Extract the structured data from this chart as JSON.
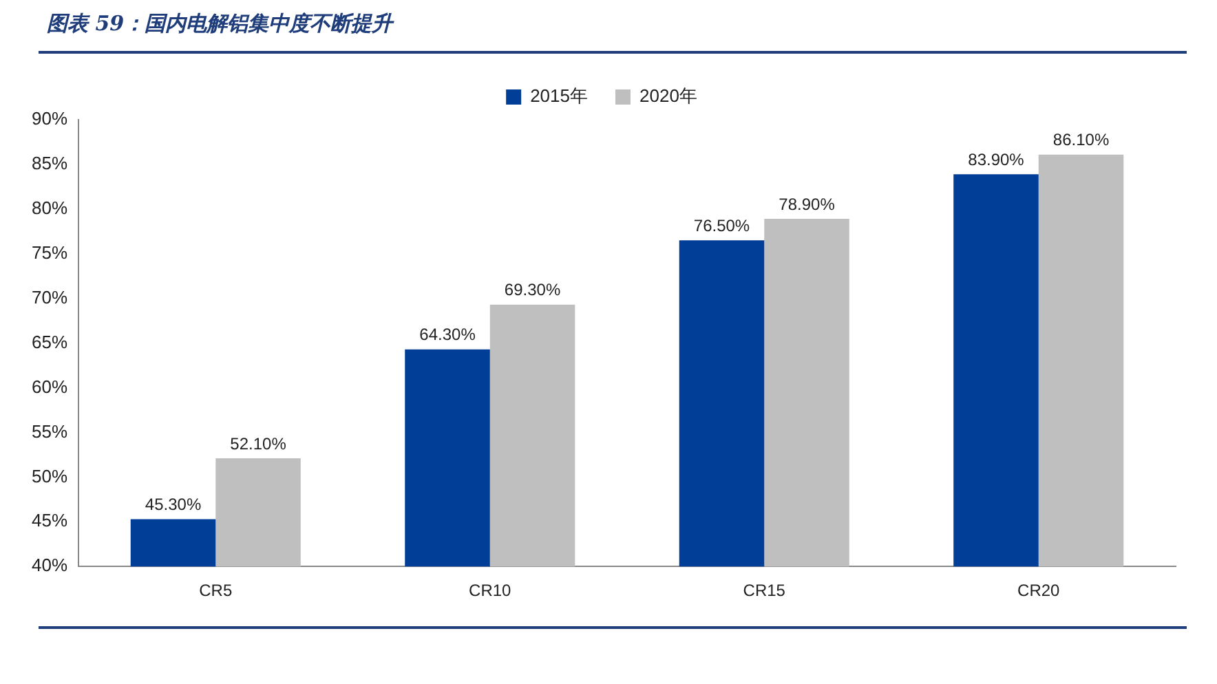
{
  "chart_data": {
    "type": "bar",
    "title": "图表 59：国内电解铝集中度不断提升",
    "categories": [
      "CR5",
      "CR10",
      "CR15",
      "CR20"
    ],
    "series": [
      {
        "name": "2015年",
        "color": "#003e98",
        "values": [
          45.3,
          64.3,
          76.5,
          83.9
        ],
        "value_labels": [
          "45.30%",
          "64.30%",
          "76.50%",
          "83.90%"
        ]
      },
      {
        "name": "2020年",
        "color": "#bfbfbf",
        "values": [
          52.1,
          69.3,
          78.9,
          86.1
        ],
        "value_labels": [
          "52.10%",
          "69.30%",
          "78.90%",
          "86.10%"
        ]
      }
    ],
    "ylim": [
      40,
      90
    ],
    "yticks": [
      {
        "value": 40,
        "label": "40%"
      },
      {
        "value": 45,
        "label": "45%"
      },
      {
        "value": 50,
        "label": "50%"
      },
      {
        "value": 55,
        "label": "55%"
      },
      {
        "value": 60,
        "label": "60%"
      },
      {
        "value": 65,
        "label": "65%"
      },
      {
        "value": 70,
        "label": "70%"
      },
      {
        "value": 75,
        "label": "75%"
      },
      {
        "value": 80,
        "label": "80%"
      },
      {
        "value": 85,
        "label": "85%"
      },
      {
        "value": 90,
        "label": "90%"
      }
    ],
    "legend": "top"
  }
}
